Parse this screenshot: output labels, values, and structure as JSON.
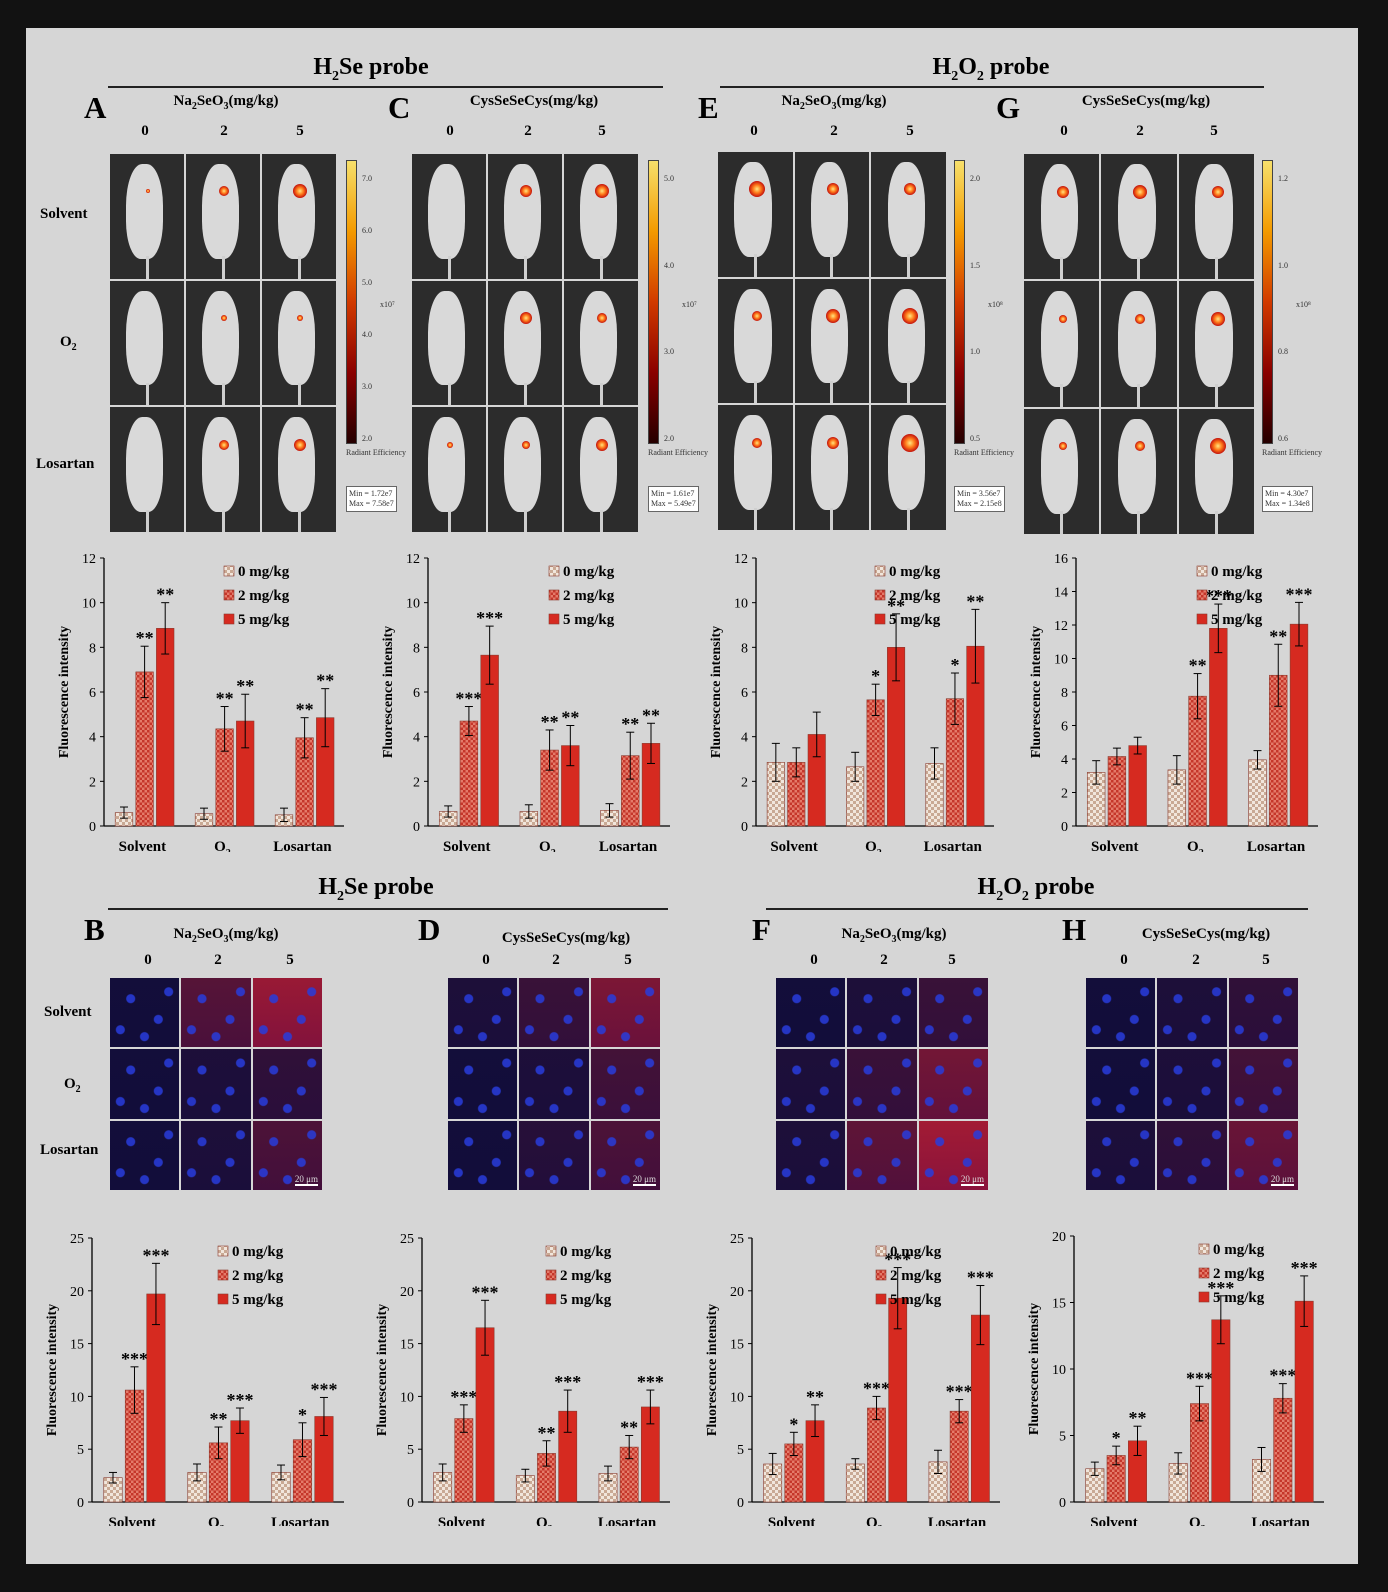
{
  "sections": [
    {
      "title_main": "H",
      "title_sub": "2",
      "title_rest": "Se probe"
    },
    {
      "title_main": "H",
      "title_sub": "2",
      "title_mid": "O",
      "title_sub2": "2",
      "title_rest": " probe"
    },
    {
      "title_main": "H",
      "title_sub": "2",
      "title_rest": "Se probe"
    },
    {
      "title_main": "H",
      "title_sub": "2",
      "title_mid": "O",
      "title_sub2": "2",
      "title_rest": " probe"
    }
  ],
  "panels": {
    "A": {
      "letter": "A",
      "compound_main": "Na",
      "compound_sub": "2",
      "compound_mid": "SeO",
      "compound_sub2": "3",
      "compound_rest": "(mg/kg)"
    },
    "C": {
      "letter": "C",
      "compound": "CysSeSeCys(mg/kg)"
    },
    "E": {
      "letter": "E",
      "compound_main": "Na",
      "compound_sub": "2",
      "compound_mid": "SeO",
      "compound_sub2": "3",
      "compound_rest": "(mg/kg)"
    },
    "G": {
      "letter": "G",
      "compound": "CysSeSeCys(mg/kg)"
    },
    "B": {
      "letter": "B",
      "compound_main": "Na",
      "compound_sub": "2",
      "compound_mid": "SeO",
      "compound_sub2": "3",
      "compound_rest": "(mg/kg)"
    },
    "D": {
      "letter": "D",
      "compound": "CysSeSeCys(mg/kg)"
    },
    "F": {
      "letter": "F",
      "compound_main": "Na",
      "compound_sub": "2",
      "compound_mid": "SeO",
      "compound_sub2": "3",
      "compound_rest": "(mg/kg)"
    },
    "H": {
      "letter": "H",
      "compound": "CysSeSeCys(mg/kg)"
    }
  },
  "doses": [
    "0",
    "2",
    "5"
  ],
  "row_labels": {
    "solvent": "Solvent",
    "o2_main": "O",
    "o2_sub": "2",
    "losartan": "Losartan"
  },
  "colorbars": [
    {
      "ticks": [
        "7.0",
        "6.0",
        "5.0",
        "4.0",
        "3.0",
        "2.0"
      ],
      "unit": "x10⁷",
      "legend": "Radiant Efficiency",
      "scale_min": "Min = 1.72e7",
      "scale_max": "Max = 7.58e7"
    },
    {
      "ticks": [
        "5.0",
        "4.0",
        "3.0",
        "2.0"
      ],
      "unit": "x10⁷",
      "legend": "Radiant Efficiency",
      "scale_min": "Min = 1.61e7",
      "scale_max": "Max = 5.49e7"
    },
    {
      "ticks": [
        "2.0",
        "1.5",
        "1.0",
        "0.5"
      ],
      "unit": "x10⁸",
      "legend": "Radiant Efficiency",
      "scale_min": "Min = 3.56e7",
      "scale_max": "Max = 2.15e8"
    },
    {
      "ticks": [
        "1.2",
        "1.0",
        "0.8",
        "0.6"
      ],
      "unit": "x10⁸",
      "legend": "Radiant Efficiency",
      "scale_min": "Min = 4.30e7",
      "scale_max": "Max = 1.34e8"
    }
  ],
  "scalebar_label": "20 μm",
  "colors": {
    "dose0": "#e8d3c4",
    "dose2": "#d8503e",
    "dose5": "#d8221c",
    "frame": "#d6d6d6"
  },
  "chart_data": [
    {
      "panel": "A",
      "type": "bar",
      "categories": [
        "Solvent",
        "O2",
        "Losartan"
      ],
      "ylabel": "Fluorescence intensity",
      "ylim": [
        0,
        12
      ],
      "yticks": [
        0,
        2,
        4,
        6,
        8,
        10,
        12
      ],
      "series": [
        {
          "name": "0 mg/kg",
          "values": [
            0.6,
            0.55,
            0.5
          ],
          "errors": [
            0.25,
            0.25,
            0.3
          ],
          "stars": [
            "",
            "",
            ""
          ]
        },
        {
          "name": "2 mg/kg",
          "values": [
            6.9,
            4.35,
            3.95
          ],
          "errors": [
            1.15,
            1.0,
            0.9
          ],
          "stars": [
            "**",
            "**",
            "**"
          ]
        },
        {
          "name": "5 mg/kg",
          "values": [
            8.85,
            4.7,
            4.85
          ],
          "errors": [
            1.15,
            1.2,
            1.3
          ],
          "stars": [
            "**",
            "**",
            "**"
          ]
        }
      ]
    },
    {
      "panel": "C",
      "type": "bar",
      "categories": [
        "Solvent",
        "O2",
        "Losartan"
      ],
      "ylabel": "Fluorescence intensity",
      "ylim": [
        0,
        12
      ],
      "yticks": [
        0,
        2,
        4,
        6,
        8,
        10,
        12
      ],
      "series": [
        {
          "name": "0 mg/kg",
          "values": [
            0.65,
            0.65,
            0.7
          ],
          "errors": [
            0.25,
            0.3,
            0.3
          ],
          "stars": [
            "",
            "",
            ""
          ]
        },
        {
          "name": "2 mg/kg",
          "values": [
            4.7,
            3.4,
            3.15
          ],
          "errors": [
            0.65,
            0.9,
            1.05
          ],
          "stars": [
            "***",
            "**",
            "**"
          ]
        },
        {
          "name": "5 mg/kg",
          "values": [
            7.65,
            3.6,
            3.7
          ],
          "errors": [
            1.3,
            0.9,
            0.9
          ],
          "stars": [
            "***",
            "**",
            "**"
          ]
        }
      ]
    },
    {
      "panel": "E",
      "type": "bar",
      "categories": [
        "Solvent",
        "O2",
        "Losartan"
      ],
      "ylabel": "Fluorescence intensity",
      "ylim": [
        0,
        12
      ],
      "yticks": [
        0,
        2,
        4,
        6,
        8,
        10,
        12
      ],
      "series": [
        {
          "name": "0 mg/kg",
          "values": [
            2.85,
            2.65,
            2.8
          ],
          "errors": [
            0.85,
            0.65,
            0.7
          ],
          "stars": [
            "",
            "",
            ""
          ]
        },
        {
          "name": "2 mg/kg",
          "values": [
            2.85,
            5.65,
            5.7
          ],
          "errors": [
            0.65,
            0.7,
            1.15
          ],
          "stars": [
            "",
            "*",
            "*"
          ]
        },
        {
          "name": "5 mg/kg",
          "values": [
            4.1,
            8.0,
            8.05
          ],
          "errors": [
            1.0,
            1.5,
            1.65
          ],
          "stars": [
            "",
            "**",
            "**"
          ]
        }
      ]
    },
    {
      "panel": "G",
      "type": "bar",
      "categories": [
        "Solvent",
        "O2",
        "Losartan"
      ],
      "ylabel": "Fluorescence intensity",
      "ylim": [
        0,
        16
      ],
      "yticks": [
        0,
        2,
        4,
        6,
        8,
        10,
        12,
        14,
        16
      ],
      "series": [
        {
          "name": "0 mg/kg",
          "values": [
            3.2,
            3.35,
            3.95
          ],
          "errors": [
            0.7,
            0.85,
            0.55
          ],
          "stars": [
            "",
            "",
            ""
          ]
        },
        {
          "name": "2 mg/kg",
          "values": [
            4.15,
            7.75,
            9.0
          ],
          "errors": [
            0.5,
            1.35,
            1.85
          ],
          "stars": [
            "",
            "**",
            "**"
          ]
        },
        {
          "name": "5 mg/kg",
          "values": [
            4.8,
            11.8,
            12.05
          ],
          "errors": [
            0.5,
            1.45,
            1.3
          ],
          "stars": [
            "",
            "***",
            "***"
          ]
        }
      ]
    },
    {
      "panel": "B",
      "type": "bar",
      "categories": [
        "Solvent",
        "O2",
        "Losartan"
      ],
      "ylabel": "Fluorescence intensity",
      "ylim": [
        0,
        25
      ],
      "yticks": [
        0,
        5,
        10,
        15,
        20,
        25
      ],
      "series": [
        {
          "name": "0 mg/kg",
          "values": [
            2.3,
            2.8,
            2.8
          ],
          "errors": [
            0.5,
            0.8,
            0.7
          ],
          "stars": [
            "",
            "",
            ""
          ]
        },
        {
          "name": "2 mg/kg",
          "values": [
            10.6,
            5.6,
            5.9
          ],
          "errors": [
            2.2,
            1.5,
            1.6
          ],
          "stars": [
            "***",
            "**",
            "*"
          ]
        },
        {
          "name": "5 mg/kg",
          "values": [
            19.7,
            7.7,
            8.1
          ],
          "errors": [
            2.9,
            1.2,
            1.8
          ],
          "stars": [
            "***",
            "***",
            "***"
          ]
        }
      ]
    },
    {
      "panel": "D",
      "type": "bar",
      "categories": [
        "Solvent",
        "O2",
        "Losartan"
      ],
      "ylabel": "Fluorescence intensity",
      "ylim": [
        0,
        25
      ],
      "yticks": [
        0,
        5,
        10,
        15,
        20,
        25
      ],
      "series": [
        {
          "name": "0 mg/kg",
          "values": [
            2.8,
            2.5,
            2.7
          ],
          "errors": [
            0.8,
            0.6,
            0.7
          ],
          "stars": [
            "",
            "",
            ""
          ]
        },
        {
          "name": "2 mg/kg",
          "values": [
            7.9,
            4.6,
            5.2
          ],
          "errors": [
            1.3,
            1.2,
            1.1
          ],
          "stars": [
            "***",
            "**",
            "**"
          ]
        },
        {
          "name": "5 mg/kg",
          "values": [
            16.5,
            8.6,
            9.0
          ],
          "errors": [
            2.6,
            2.0,
            1.6
          ],
          "stars": [
            "***",
            "***",
            "***"
          ]
        }
      ]
    },
    {
      "panel": "F",
      "type": "bar",
      "categories": [
        "Solvent",
        "O2",
        "Losartan"
      ],
      "ylabel": "Fluorescence intensity",
      "ylim": [
        0,
        25
      ],
      "yticks": [
        0,
        5,
        10,
        15,
        20,
        25
      ],
      "series": [
        {
          "name": "0 mg/kg",
          "values": [
            3.6,
            3.6,
            3.8
          ],
          "errors": [
            1.0,
            0.5,
            1.1
          ],
          "stars": [
            "",
            "",
            ""
          ]
        },
        {
          "name": "2 mg/kg",
          "values": [
            5.5,
            8.9,
            8.6
          ],
          "errors": [
            1.1,
            1.1,
            1.1
          ],
          "stars": [
            "*",
            "***",
            "***"
          ]
        },
        {
          "name": "5 mg/kg",
          "values": [
            7.7,
            19.3,
            17.7
          ],
          "errors": [
            1.5,
            2.9,
            2.8
          ],
          "stars": [
            "**",
            "***",
            "***"
          ]
        }
      ]
    },
    {
      "panel": "H",
      "type": "bar",
      "categories": [
        "Solvent",
        "O2",
        "Losartan"
      ],
      "ylabel": "Fluorescence intensity",
      "ylim": [
        0,
        20
      ],
      "yticks": [
        0,
        5,
        10,
        15,
        20
      ],
      "series": [
        {
          "name": "0 mg/kg",
          "values": [
            2.5,
            2.9,
            3.2
          ],
          "errors": [
            0.5,
            0.8,
            0.9
          ],
          "stars": [
            "",
            "",
            ""
          ]
        },
        {
          "name": "2 mg/kg",
          "values": [
            3.5,
            7.4,
            7.8
          ],
          "errors": [
            0.7,
            1.3,
            1.1
          ],
          "stars": [
            "*",
            "***",
            "***"
          ]
        },
        {
          "name": "5 mg/kg",
          "values": [
            4.6,
            13.7,
            15.1
          ],
          "errors": [
            1.1,
            1.8,
            1.9
          ],
          "stars": [
            "**",
            "***",
            "***"
          ]
        }
      ]
    }
  ]
}
